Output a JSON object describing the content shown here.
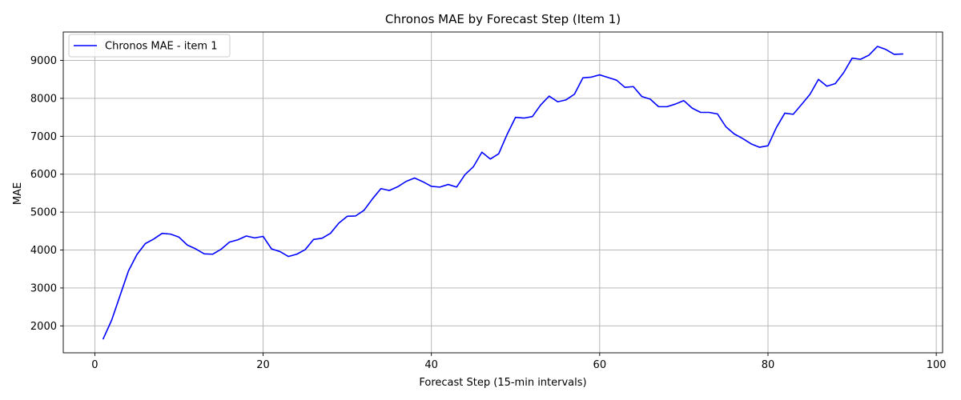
{
  "chart_data": {
    "type": "line",
    "title": "Chronos MAE by Forecast Step (Item 1)",
    "xlabel": "Forecast Step (15-min intervals)",
    "ylabel": "MAE",
    "xlim": [
      -3.75,
      100.75
    ],
    "ylim": [
      1290,
      9750
    ],
    "xticks": [
      0,
      20,
      40,
      60,
      80,
      100
    ],
    "yticks": [
      2000,
      3000,
      4000,
      5000,
      6000,
      7000,
      8000,
      9000
    ],
    "grid": true,
    "legend_position": "top-left",
    "series": [
      {
        "name": "Chronos MAE - item 1",
        "color": "#0000ff",
        "x": [
          1,
          2,
          3,
          4,
          5,
          6,
          7,
          8,
          9,
          10,
          11,
          12,
          13,
          14,
          15,
          16,
          17,
          18,
          19,
          20,
          21,
          22,
          23,
          24,
          25,
          26,
          27,
          28,
          29,
          30,
          31,
          32,
          33,
          34,
          35,
          36,
          37,
          38,
          39,
          40,
          41,
          42,
          43,
          44,
          45,
          46,
          47,
          48,
          49,
          50,
          51,
          52,
          53,
          54,
          55,
          56,
          57,
          58,
          59,
          60,
          61,
          62,
          63,
          64,
          65,
          66,
          67,
          68,
          69,
          70,
          71,
          72,
          73,
          74,
          75,
          76,
          77,
          78,
          79,
          80,
          81,
          82,
          83,
          84,
          85,
          86,
          87,
          88,
          89,
          90,
          91,
          92,
          93,
          94,
          95,
          96
        ],
        "y": [
          1660,
          2150,
          2800,
          3450,
          3880,
          4170,
          4290,
          4440,
          4420,
          4340,
          4130,
          4030,
          3900,
          3890,
          4020,
          4210,
          4270,
          4370,
          4320,
          4360,
          4030,
          3960,
          3830,
          3890,
          4010,
          4280,
          4310,
          4440,
          4710,
          4890,
          4900,
          5050,
          5350,
          5620,
          5570,
          5670,
          5810,
          5900,
          5800,
          5680,
          5660,
          5730,
          5660,
          5990,
          6200,
          6580,
          6400,
          6540,
          7050,
          7500,
          7480,
          7520,
          7830,
          8060,
          7910,
          7960,
          8110,
          8540,
          8560,
          8620,
          8550,
          8480,
          8290,
          8310,
          8050,
          7980,
          7780,
          7780,
          7850,
          7940,
          7740,
          7630,
          7630,
          7590,
          7250,
          7060,
          6940,
          6800,
          6710,
          6750,
          7230,
          7610,
          7580,
          7840,
          8110,
          8500,
          8320,
          8390,
          8680,
          9060,
          9030,
          9140,
          9370,
          9290,
          9160,
          9170
        ]
      }
    ]
  }
}
